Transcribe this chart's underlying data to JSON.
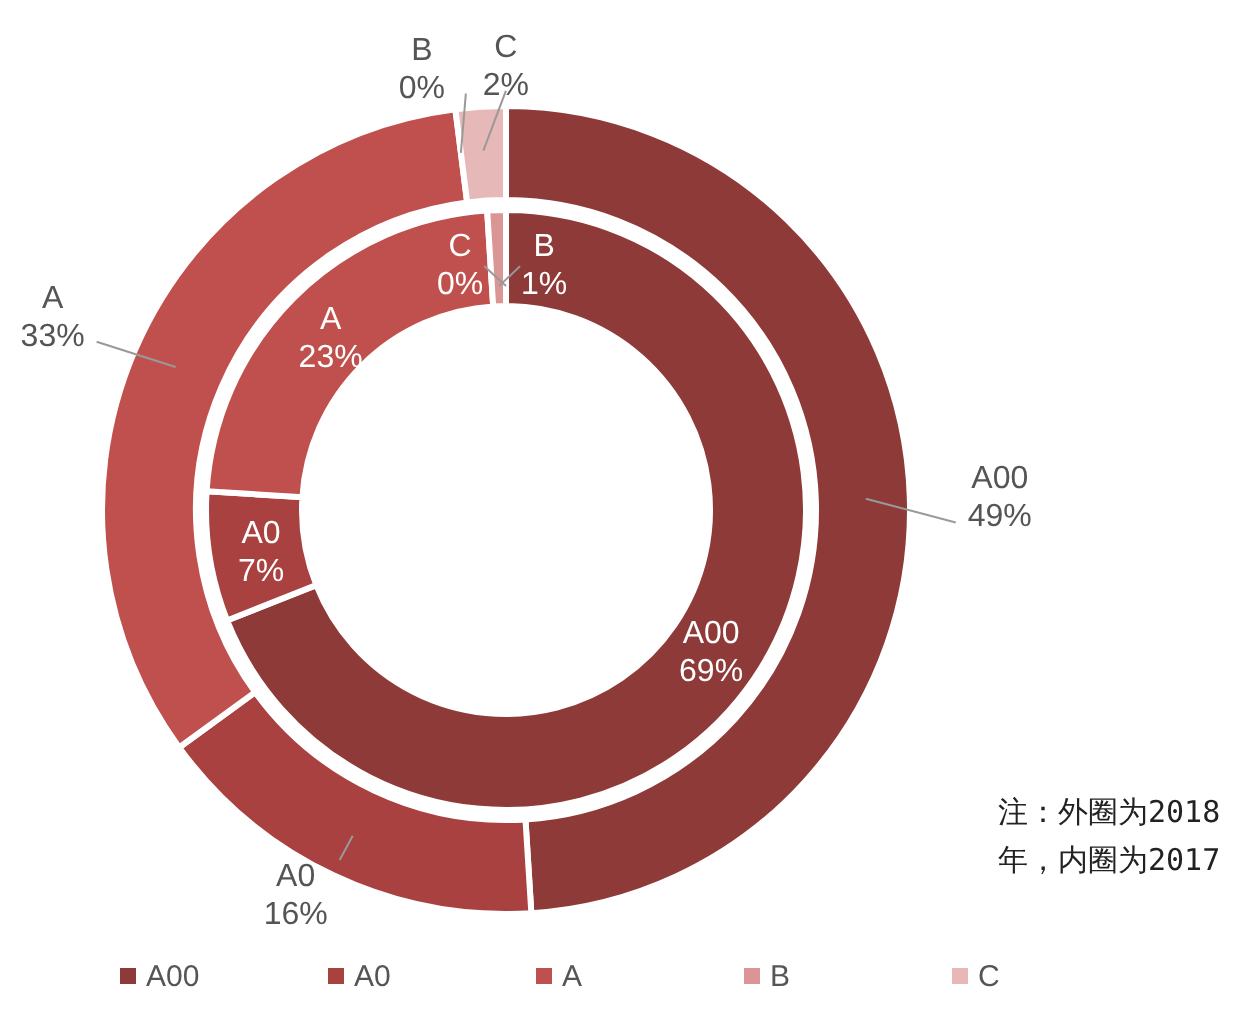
{
  "chart_data": {
    "type": "donut",
    "categories": [
      "A00",
      "A0",
      "A",
      "B",
      "C"
    ],
    "colors": [
      "#8e3a38",
      "#a8413f",
      "#c0504d",
      "#d99694",
      "#e6b9b8"
    ],
    "series": [
      {
        "values": [
          49,
          16,
          33,
          0,
          2
        ],
        "value_labels": [
          "49%",
          "16%",
          "33%",
          "0%",
          "2%"
        ]
      },
      {
        "values": [
          69,
          7,
          23,
          1,
          0
        ],
        "value_labels": [
          "69%",
          "7%",
          "23%",
          "1%",
          "0%"
        ]
      }
    ],
    "legend": "bottom",
    "annotations": [
      "注：外圈为2018年，内圈为2017"
    ]
  }
}
